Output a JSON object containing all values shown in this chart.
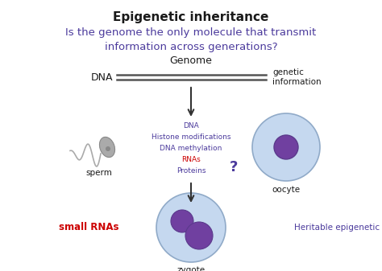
{
  "title": "Epigenetic inheritance",
  "subtitle_line1": "Is the genome the only molecule that transmit",
  "subtitle_line2": "information across generations?",
  "title_color": "#1a1a1a",
  "subtitle_color": "#4b3a9c",
  "background_color": "#ffffff",
  "genome_label": "Genome",
  "dna_label": "DNA",
  "genetic_info_label": "genetic\ninformation",
  "sperm_label": "sperm",
  "oocyte_label": "oocyte",
  "zygote_label": "zygote",
  "small_rna_label": "small RNAs",
  "small_rna_color": "#cc0000",
  "heritable_label": "Heritable epigenetic functions?",
  "heritable_color": "#4b3a9c",
  "question_mark": "?",
  "question_mark_color": "#4b3a9c",
  "center_text_lines": [
    "DNA",
    "Histone modifications",
    "DNA methylation",
    "RNAs",
    "Proteins"
  ],
  "center_text_colors": [
    "#4b3a9c",
    "#4b3a9c",
    "#4b3a9c",
    "#cc0000",
    "#4b3a9c"
  ],
  "cell_fill": "#c5d8ef",
  "cell_edge": "#90aac8",
  "nucleus_fill": "#7040a0",
  "nucleus_edge": "#5b3a8c",
  "sperm_color": "#aaaaaa",
  "arrow_color": "#333333"
}
